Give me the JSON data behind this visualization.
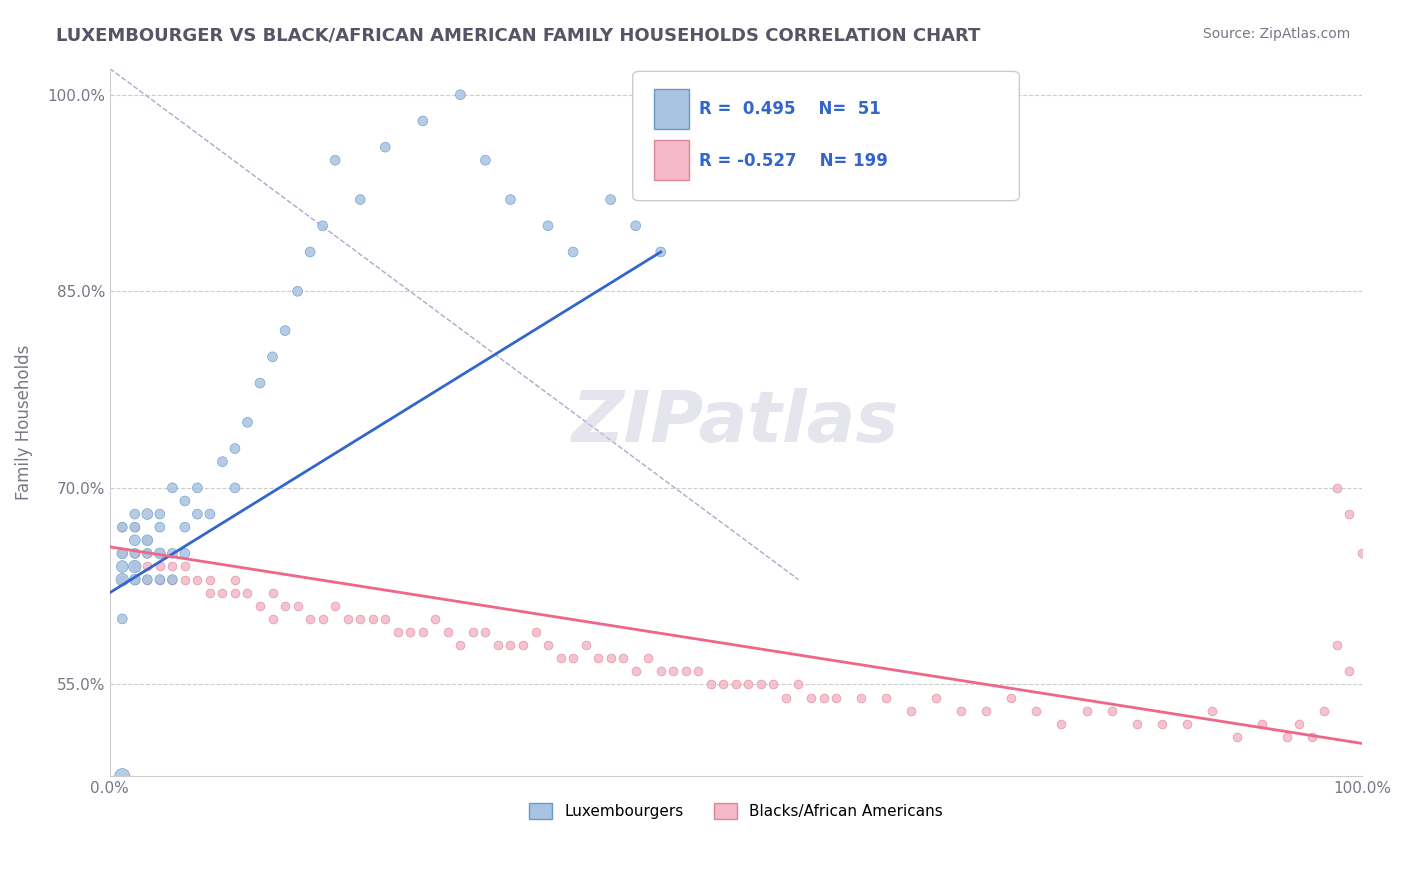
{
  "title": "LUXEMBOURGER VS BLACK/AFRICAN AMERICAN FAMILY HOUSEHOLDS CORRELATION CHART",
  "source_text": "Source: ZipAtlas.com",
  "ylabel": "Family Households",
  "xlabel": "",
  "xlim": [
    0.0,
    1.0
  ],
  "ylim": [
    0.48,
    1.02
  ],
  "yticks": [
    0.55,
    0.7,
    0.85,
    1.0
  ],
  "ytick_labels": [
    "55.0%",
    "70.0%",
    "85.0%",
    "100.0%"
  ],
  "xticks": [
    0.0,
    1.0
  ],
  "xtick_labels": [
    "0.0%",
    "100.0%"
  ],
  "legend_r1": "R =  0.495",
  "legend_n1": "N=  51",
  "legend_r2": "R = -0.527",
  "legend_n2": "N= 199",
  "blue_color": "#a8c4e0",
  "blue_edge": "#6699cc",
  "blue_line_color": "#3366cc",
  "pink_color": "#f4b8c8",
  "pink_edge": "#dd8899",
  "pink_line_color": "#ee6688",
  "watermark": "ZIPatlas",
  "watermark_color": "#ccccdd",
  "background_color": "#ffffff",
  "grid_color": "#cccccc",
  "title_color": "#555566",
  "axis_label_color": "#777788",
  "legend_text_color": "#333344",
  "legend_r_color": "#3366cc",
  "blue_scatter_x": [
    0.01,
    0.01,
    0.01,
    0.01,
    0.01,
    0.02,
    0.02,
    0.02,
    0.02,
    0.02,
    0.02,
    0.03,
    0.03,
    0.03,
    0.03,
    0.04,
    0.04,
    0.04,
    0.04,
    0.05,
    0.05,
    0.05,
    0.06,
    0.06,
    0.06,
    0.07,
    0.07,
    0.08,
    0.09,
    0.1,
    0.1,
    0.11,
    0.12,
    0.13,
    0.14,
    0.15,
    0.16,
    0.17,
    0.18,
    0.2,
    0.22,
    0.25,
    0.28,
    0.3,
    0.32,
    0.35,
    0.37,
    0.4,
    0.42,
    0.44,
    0.01
  ],
  "blue_scatter_y": [
    0.63,
    0.65,
    0.67,
    0.64,
    0.6,
    0.66,
    0.68,
    0.63,
    0.65,
    0.67,
    0.64,
    0.66,
    0.68,
    0.65,
    0.63,
    0.67,
    0.65,
    0.63,
    0.68,
    0.65,
    0.7,
    0.63,
    0.67,
    0.69,
    0.65,
    0.68,
    0.7,
    0.68,
    0.72,
    0.7,
    0.73,
    0.75,
    0.78,
    0.8,
    0.82,
    0.85,
    0.88,
    0.9,
    0.95,
    0.92,
    0.96,
    0.98,
    1.0,
    0.95,
    0.92,
    0.9,
    0.88,
    0.92,
    0.9,
    0.88,
    0.48
  ],
  "blue_scatter_sizes": [
    80,
    60,
    50,
    70,
    50,
    60,
    50,
    60,
    50,
    50,
    80,
    60,
    60,
    50,
    50,
    50,
    60,
    50,
    50,
    50,
    50,
    50,
    50,
    50,
    50,
    50,
    50,
    50,
    50,
    50,
    50,
    50,
    50,
    50,
    50,
    50,
    50,
    50,
    50,
    50,
    50,
    50,
    50,
    50,
    50,
    50,
    50,
    50,
    50,
    50,
    120
  ],
  "pink_scatter_x": [
    0.01,
    0.01,
    0.01,
    0.02,
    0.02,
    0.02,
    0.02,
    0.02,
    0.03,
    0.03,
    0.03,
    0.03,
    0.04,
    0.04,
    0.04,
    0.05,
    0.05,
    0.06,
    0.06,
    0.07,
    0.08,
    0.08,
    0.09,
    0.1,
    0.1,
    0.11,
    0.12,
    0.13,
    0.13,
    0.14,
    0.15,
    0.16,
    0.17,
    0.18,
    0.19,
    0.2,
    0.21,
    0.22,
    0.23,
    0.24,
    0.25,
    0.26,
    0.27,
    0.28,
    0.29,
    0.3,
    0.31,
    0.32,
    0.33,
    0.34,
    0.35,
    0.36,
    0.37,
    0.38,
    0.39,
    0.4,
    0.41,
    0.42,
    0.43,
    0.44,
    0.45,
    0.46,
    0.47,
    0.48,
    0.49,
    0.5,
    0.51,
    0.52,
    0.53,
    0.54,
    0.55,
    0.56,
    0.57,
    0.58,
    0.6,
    0.62,
    0.64,
    0.66,
    0.68,
    0.7,
    0.72,
    0.74,
    0.76,
    0.78,
    0.8,
    0.82,
    0.84,
    0.86,
    0.88,
    0.9,
    0.92,
    0.94,
    0.95,
    0.96,
    0.97,
    0.98,
    0.99,
    1.0,
    0.99,
    0.98
  ],
  "pink_scatter_y": [
    0.67,
    0.65,
    0.63,
    0.67,
    0.65,
    0.63,
    0.65,
    0.64,
    0.66,
    0.64,
    0.63,
    0.65,
    0.65,
    0.63,
    0.64,
    0.64,
    0.63,
    0.64,
    0.63,
    0.63,
    0.62,
    0.63,
    0.62,
    0.63,
    0.62,
    0.62,
    0.61,
    0.62,
    0.6,
    0.61,
    0.61,
    0.6,
    0.6,
    0.61,
    0.6,
    0.6,
    0.6,
    0.6,
    0.59,
    0.59,
    0.59,
    0.6,
    0.59,
    0.58,
    0.59,
    0.59,
    0.58,
    0.58,
    0.58,
    0.59,
    0.58,
    0.57,
    0.57,
    0.58,
    0.57,
    0.57,
    0.57,
    0.56,
    0.57,
    0.56,
    0.56,
    0.56,
    0.56,
    0.55,
    0.55,
    0.55,
    0.55,
    0.55,
    0.55,
    0.54,
    0.55,
    0.54,
    0.54,
    0.54,
    0.54,
    0.54,
    0.53,
    0.54,
    0.53,
    0.53,
    0.54,
    0.53,
    0.52,
    0.53,
    0.53,
    0.52,
    0.52,
    0.52,
    0.53,
    0.51,
    0.52,
    0.51,
    0.52,
    0.51,
    0.53,
    0.7,
    0.56,
    0.65,
    0.68,
    0.58
  ],
  "blue_trend_x": [
    0.0,
    0.44
  ],
  "blue_trend_y": [
    0.62,
    0.88
  ],
  "pink_trend_x": [
    0.0,
    1.0
  ],
  "pink_trend_y": [
    0.655,
    0.505
  ]
}
